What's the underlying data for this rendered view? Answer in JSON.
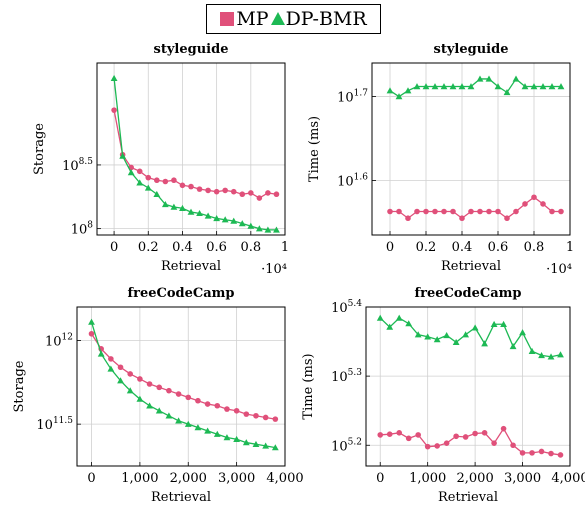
{
  "legend": {
    "mp_label": "MP",
    "dp_label": "DP-BMR",
    "mp_color": "#e0507a",
    "dp_color": "#1db954"
  },
  "chart_data": [
    {
      "type": "line",
      "title": "styleguide",
      "xlabel": "Retrieval",
      "ylabel": "Storage",
      "x_multiplier_label": "·10⁴",
      "ylog": true,
      "xlim": [
        -0.1,
        1.0
      ],
      "ylim_exp": [
        7.95,
        9.3
      ],
      "xticks": [
        0,
        0.2,
        0.4,
        0.6,
        0.8,
        1
      ],
      "xtick_labels": [
        "0",
        "0.2",
        "0.4",
        "0.6",
        "0.8",
        "1"
      ],
      "yticks_exp": [
        8,
        8.5
      ],
      "ytick_labels": [
        "10^8",
        "10^8.5"
      ],
      "series": [
        {
          "name": "MP",
          "x": [
            0,
            0.05,
            0.1,
            0.15,
            0.2,
            0.25,
            0.3,
            0.35,
            0.4,
            0.45,
            0.5,
            0.55,
            0.6,
            0.65,
            0.7,
            0.75,
            0.8,
            0.85,
            0.9,
            0.95
          ],
          "y_exp": [
            8.93,
            8.58,
            8.48,
            8.45,
            8.4,
            8.38,
            8.37,
            8.38,
            8.34,
            8.33,
            8.31,
            8.3,
            8.29,
            8.3,
            8.29,
            8.27,
            8.28,
            8.24,
            8.28,
            8.27
          ]
        },
        {
          "name": "DP-BMR",
          "x": [
            0,
            0.05,
            0.1,
            0.15,
            0.2,
            0.25,
            0.3,
            0.35,
            0.4,
            0.45,
            0.5,
            0.55,
            0.6,
            0.65,
            0.7,
            0.75,
            0.8,
            0.85,
            0.9,
            0.95
          ],
          "y_exp": [
            9.18,
            8.57,
            8.44,
            8.36,
            8.32,
            8.27,
            8.19,
            8.17,
            8.16,
            8.13,
            8.12,
            8.1,
            8.08,
            8.07,
            8.06,
            8.04,
            8.02,
            8.0,
            7.99,
            7.99
          ]
        }
      ]
    },
    {
      "type": "line",
      "title": "styleguide",
      "xlabel": "Retrieval",
      "ylabel": "Time (ms)",
      "x_multiplier_label": "·10⁴",
      "ylog": true,
      "xlim": [
        -0.1,
        1.0
      ],
      "ylim_exp": [
        1.535,
        1.74
      ],
      "xticks": [
        0,
        0.2,
        0.4,
        0.6,
        0.8,
        1
      ],
      "xtick_labels": [
        "0",
        "0.2",
        "0.4",
        "0.6",
        "0.8",
        "1"
      ],
      "yticks_exp": [
        1.6,
        1.7
      ],
      "ytick_labels": [
        "10^1.6",
        "10^1.7"
      ],
      "series": [
        {
          "name": "MP",
          "x": [
            0,
            0.05,
            0.1,
            0.15,
            0.2,
            0.25,
            0.3,
            0.35,
            0.4,
            0.45,
            0.5,
            0.55,
            0.6,
            0.65,
            0.7,
            0.75,
            0.8,
            0.85,
            0.9,
            0.95
          ],
          "y_exp": [
            1.563,
            1.563,
            1.555,
            1.563,
            1.563,
            1.563,
            1.563,
            1.563,
            1.555,
            1.563,
            1.563,
            1.563,
            1.563,
            1.555,
            1.563,
            1.572,
            1.58,
            1.572,
            1.563,
            1.563
          ]
        },
        {
          "name": "DP-BMR",
          "x": [
            0,
            0.05,
            0.1,
            0.15,
            0.2,
            0.25,
            0.3,
            0.35,
            0.4,
            0.45,
            0.5,
            0.55,
            0.6,
            0.65,
            0.7,
            0.75,
            0.8,
            0.85,
            0.9,
            0.95
          ],
          "y_exp": [
            1.707,
            1.7,
            1.707,
            1.712,
            1.712,
            1.712,
            1.712,
            1.712,
            1.712,
            1.712,
            1.721,
            1.721,
            1.712,
            1.705,
            1.721,
            1.712,
            1.712,
            1.712,
            1.712,
            1.712
          ]
        }
      ]
    },
    {
      "type": "line",
      "title": "freeCodeCamp",
      "xlabel": "Retrieval",
      "ylabel": "Storage",
      "ylog": true,
      "xlim": [
        -300,
        4000
      ],
      "ylim_exp": [
        11.25,
        12.2
      ],
      "xticks": [
        0,
        1000,
        2000,
        3000,
        4000
      ],
      "xtick_labels": [
        "0",
        "1,000",
        "2,000",
        "3,000",
        "4,000"
      ],
      "yticks_exp": [
        11.5,
        12
      ],
      "ytick_labels": [
        "10^11.5",
        "10^12"
      ],
      "series": [
        {
          "name": "MP",
          "x": [
            0,
            200,
            400,
            600,
            800,
            1000,
            1200,
            1400,
            1600,
            1800,
            2000,
            2200,
            2400,
            2600,
            2800,
            3000,
            3200,
            3400,
            3600,
            3800
          ],
          "y_exp": [
            12.04,
            11.95,
            11.89,
            11.84,
            11.8,
            11.77,
            11.74,
            11.72,
            11.7,
            11.68,
            11.66,
            11.64,
            11.62,
            11.61,
            11.59,
            11.58,
            11.56,
            11.55,
            11.54,
            11.53
          ]
        },
        {
          "name": "DP-BMR",
          "x": [
            0,
            200,
            400,
            600,
            800,
            1000,
            1200,
            1400,
            1600,
            1800,
            2000,
            2200,
            2400,
            2600,
            2800,
            3000,
            3200,
            3400,
            3600,
            3800
          ],
          "y_exp": [
            12.11,
            11.92,
            11.83,
            11.76,
            11.7,
            11.65,
            11.61,
            11.58,
            11.55,
            11.52,
            11.5,
            11.48,
            11.46,
            11.44,
            11.42,
            11.41,
            11.39,
            11.38,
            11.37,
            11.36
          ]
        }
      ]
    },
    {
      "type": "line",
      "title": "freeCodeCamp",
      "xlabel": "Retrieval",
      "ylabel": "Time (ms)",
      "ylog": true,
      "xlim": [
        -300,
        4000
      ],
      "ylim_exp": [
        5.17,
        5.4
      ],
      "xticks": [
        0,
        1000,
        2000,
        3000,
        4000
      ],
      "xtick_labels": [
        "0",
        "1,000",
        "2,000",
        "3,000",
        "4,000"
      ],
      "yticks_exp": [
        5.2,
        5.3,
        5.4
      ],
      "ytick_labels": [
        "10^5.2",
        "10^5.3",
        "10^5.4"
      ],
      "series": [
        {
          "name": "MP",
          "x": [
            0,
            200,
            400,
            600,
            800,
            1000,
            1200,
            1400,
            1600,
            1800,
            2000,
            2200,
            2400,
            2600,
            2800,
            3000,
            3200,
            3400,
            3600,
            3800
          ],
          "y_exp": [
            5.215,
            5.216,
            5.218,
            5.21,
            5.215,
            5.198,
            5.199,
            5.203,
            5.213,
            5.212,
            5.217,
            5.218,
            5.203,
            5.224,
            5.2,
            5.189,
            5.189,
            5.191,
            5.188,
            5.186
          ]
        },
        {
          "name": "DP-BMR",
          "x": [
            0,
            200,
            400,
            600,
            800,
            1000,
            1200,
            1400,
            1600,
            1800,
            2000,
            2200,
            2400,
            2600,
            2800,
            3000,
            3200,
            3400,
            3600,
            3800
          ],
          "y_exp": [
            5.384,
            5.371,
            5.384,
            5.376,
            5.36,
            5.357,
            5.353,
            5.359,
            5.349,
            5.36,
            5.37,
            5.347,
            5.375,
            5.375,
            5.343,
            5.363,
            5.336,
            5.33,
            5.328,
            5.331
          ]
        }
      ]
    }
  ]
}
